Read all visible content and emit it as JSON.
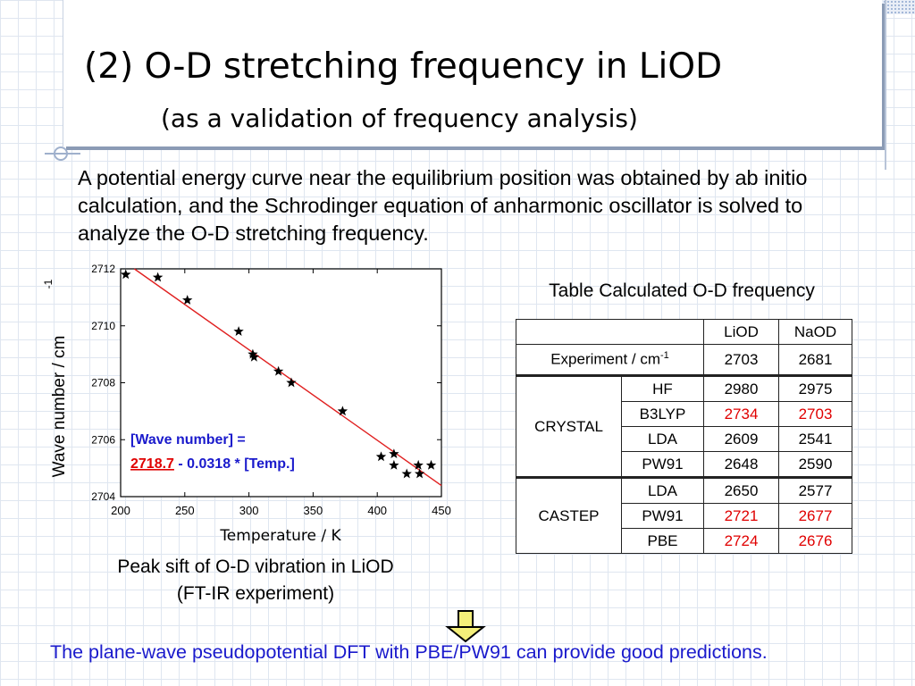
{
  "slide": {
    "title": "(2) O-D stretching frequency in LiOD",
    "subtitle": "(as a validation of frequency analysis)",
    "intro": "A potential energy curve near the equilibrium position was obtained by ab initio calculation, and the Schrodinger equation of anharmonic oscillator is solved to analyze the O-D stretching frequency.",
    "caption_line1": "Peak sift of O-D vibration in LiOD",
    "caption_line2": "(FT-IR experiment)",
    "conclusion": "The plane-wave pseudopotential DFT with PBE/PW91 can provide good predictions."
  },
  "chart_data": {
    "type": "scatter",
    "xlabel": "Temperature / K",
    "ylabel": "Wave number / cm",
    "ylabel_sup": "-1",
    "xlim": [
      200,
      450
    ],
    "ylim": [
      2704,
      2712
    ],
    "xticks": [
      200,
      250,
      300,
      350,
      400,
      450
    ],
    "yticks": [
      2704,
      2706,
      2708,
      2710,
      2712
    ],
    "points": [
      {
        "x": 204,
        "y": 2711.8
      },
      {
        "x": 229,
        "y": 2711.7
      },
      {
        "x": 252,
        "y": 2710.9
      },
      {
        "x": 292,
        "y": 2709.8
      },
      {
        "x": 303,
        "y": 2709.0
      },
      {
        "x": 304,
        "y": 2708.9
      },
      {
        "x": 323,
        "y": 2708.4
      },
      {
        "x": 333,
        "y": 2708.0
      },
      {
        "x": 373,
        "y": 2707.0
      },
      {
        "x": 403,
        "y": 2705.4
      },
      {
        "x": 413,
        "y": 2705.5
      },
      {
        "x": 413,
        "y": 2705.1
      },
      {
        "x": 423,
        "y": 2704.8
      },
      {
        "x": 432,
        "y": 2705.1
      },
      {
        "x": 433,
        "y": 2704.8
      },
      {
        "x": 442,
        "y": 2705.1
      }
    ],
    "fit": {
      "intercept": 2718.7,
      "slope": -0.0318,
      "color": "#e02020"
    },
    "annotation": {
      "line1": "[Wave number] =",
      "intercept_text": "2718.7",
      "rest_text": " - 0.0318 * [Temp.]",
      "color": "#1a1acc",
      "intercept_color": "#e00000"
    }
  },
  "table": {
    "title": "Table Calculated O-D frequency",
    "col_liod": "LiOD",
    "col_naod": "NaOD",
    "experiment": {
      "label": "Experiment / cm",
      "sup": "-1",
      "liod": "2703",
      "naod": "2681"
    },
    "crystal": {
      "label": "CRYSTAL",
      "rows": [
        {
          "method": "HF",
          "liod": "2980",
          "naod": "2975",
          "highlight": false
        },
        {
          "method": "B3LYP",
          "liod": "2734",
          "naod": "2703",
          "highlight": true
        },
        {
          "method": "LDA",
          "liod": "2609",
          "naod": "2541",
          "highlight": false
        },
        {
          "method": "PW91",
          "liod": "2648",
          "naod": "2590",
          "highlight": false
        }
      ]
    },
    "castep": {
      "label": "CASTEP",
      "rows": [
        {
          "method": "LDA",
          "liod": "2650",
          "naod": "2577",
          "highlight": false
        },
        {
          "method": "PW91",
          "liod": "2721",
          "naod": "2677",
          "highlight": true
        },
        {
          "method": "PBE",
          "liod": "2724",
          "naod": "2676",
          "highlight": true
        }
      ]
    },
    "highlight_color": "#e00000"
  },
  "icons": {
    "arrow": "down-arrow-icon",
    "arrow_fill": "#f4ef7a"
  }
}
